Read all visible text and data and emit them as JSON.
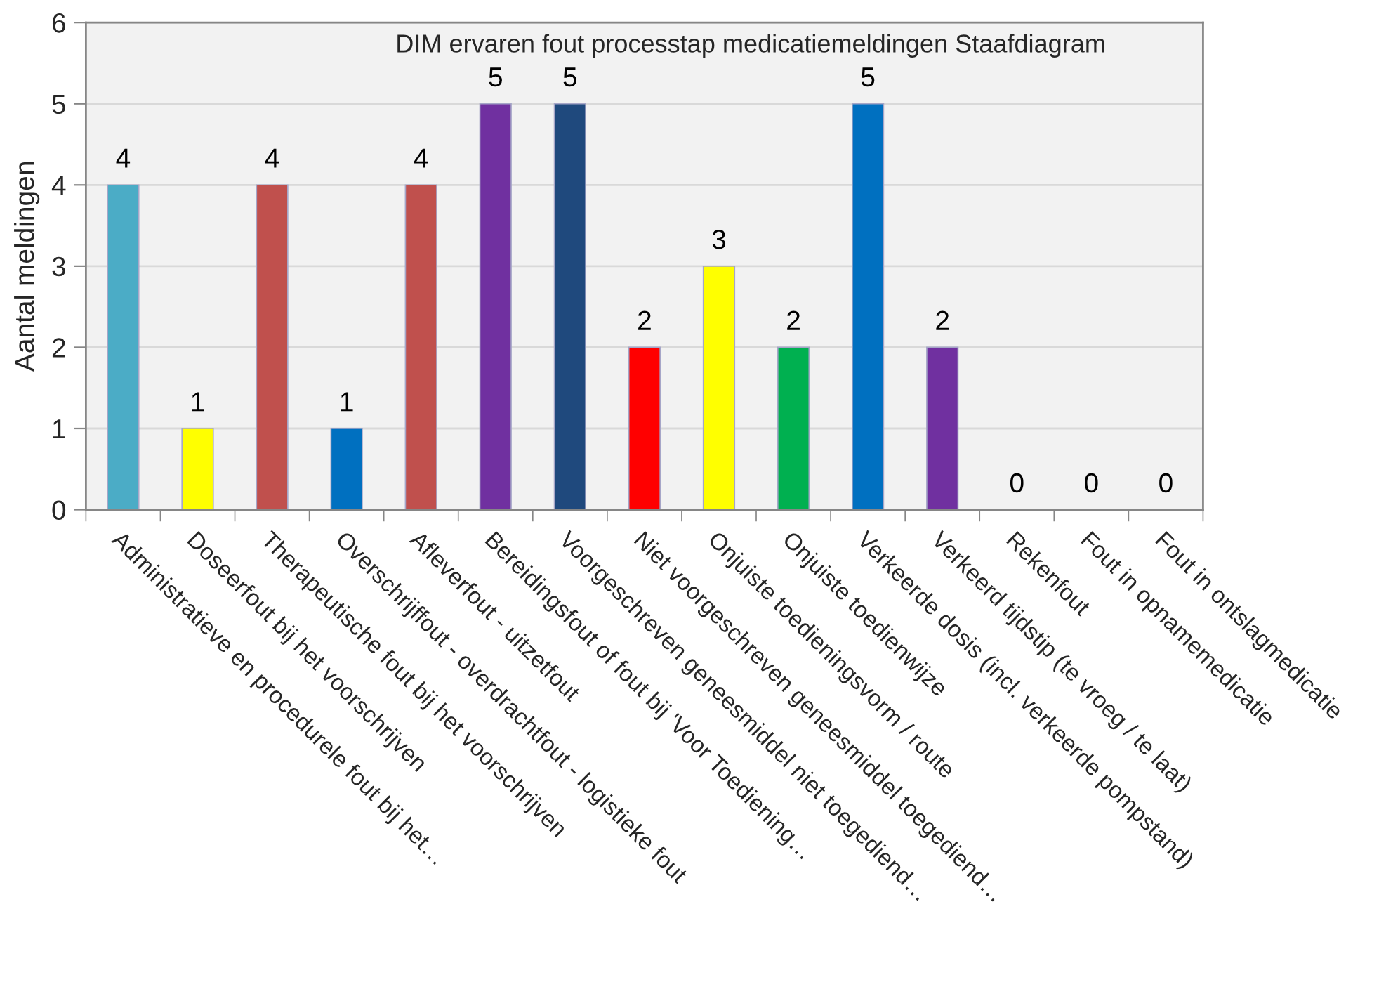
{
  "chart_data": {
    "type": "bar",
    "title": "DIM ervaren fout processtap medicatiemeldingen Staafdiagram",
    "ylabel": "Aantal meldingen",
    "categories": [
      "Administratieve en procedurele fout bij het…",
      "Doseerfout bij het voorschrijven",
      "Therapeutische fout bij het voorschrijven",
      "Overschrijffout - overdrachtfout - logistieke fout",
      "Afleverfout - uitzetfout",
      "Bereidingsfout of fout bij 'Voor Toediening…",
      "Voorgeschreven geneesmiddel niet toegediend…",
      "Niet voorgeschreven geneesmiddel toegediend…",
      "Onjuiste toedieningsvorm / route",
      "Onjuiste toedienwijze",
      "Verkeerde dosis (incl. verkeerde pompstand)",
      "Verkeerd tijdstip (te vroeg / te laat)",
      "Rekenfout",
      "Fout in opnamemedicatie",
      "Fout in ontslagmedicatie"
    ],
    "values": [
      4,
      1,
      4,
      1,
      4,
      5,
      5,
      2,
      3,
      2,
      5,
      2,
      0,
      0,
      0
    ],
    "colors": [
      "#4bacc6",
      "#ffff00",
      "#c0504d",
      "#0070c0",
      "#c0504d",
      "#7030a0",
      "#1f497d",
      "#ff0000",
      "#ffff00",
      "#00b050",
      "#0070c0",
      "#7030a0",
      null,
      null,
      null
    ],
    "ylim": [
      0,
      6
    ],
    "yticks": [
      0,
      1,
      2,
      3,
      4,
      5,
      6
    ],
    "grid": "y",
    "data_labels": true
  }
}
